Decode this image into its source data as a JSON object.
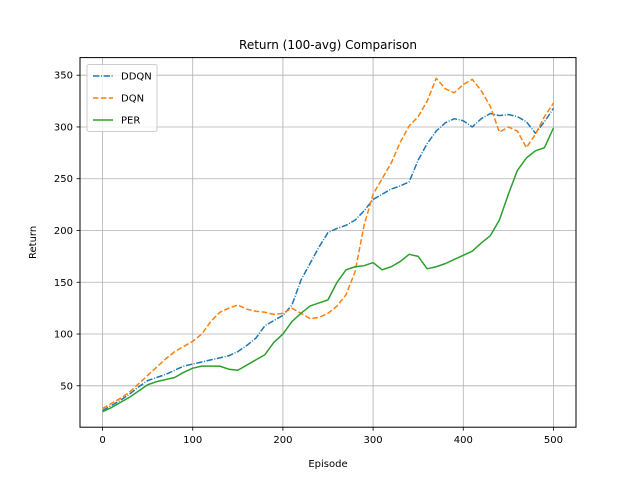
{
  "chart_data": {
    "type": "line",
    "title": "Return (100-avg) Comparison",
    "xlabel": "Episode",
    "ylabel": "Return",
    "xlim": [
      -25,
      525
    ],
    "ylim": [
      10,
      367
    ],
    "xticks": [
      0,
      100,
      200,
      300,
      400,
      500
    ],
    "yticks": [
      50,
      100,
      150,
      200,
      250,
      300,
      350
    ],
    "xtick_labels": [
      "0",
      "100",
      "200",
      "300",
      "400",
      "500"
    ],
    "ytick_labels": [
      "50",
      "100",
      "150",
      "200",
      "250",
      "300",
      "350"
    ],
    "grid": true,
    "legend_position": "upper-left",
    "series": [
      {
        "name": "DDQN",
        "color": "#1f77b4",
        "dash": "dash-dot",
        "x": [
          0,
          10,
          20,
          30,
          40,
          50,
          60,
          70,
          80,
          90,
          100,
          110,
          120,
          130,
          140,
          150,
          160,
          170,
          180,
          190,
          200,
          210,
          220,
          230,
          240,
          250,
          260,
          270,
          280,
          290,
          300,
          310,
          320,
          330,
          340,
          350,
          360,
          370,
          380,
          390,
          400,
          410,
          420,
          430,
          440,
          450,
          460,
          470,
          480,
          490,
          500
        ],
        "y": [
          26,
          31,
          36,
          42,
          49,
          55,
          58,
          61,
          65,
          69,
          71,
          73,
          75,
          77,
          79,
          83,
          89,
          96,
          108,
          113,
          118,
          128,
          152,
          168,
          184,
          198,
          202,
          205,
          210,
          219,
          230,
          235,
          240,
          243,
          247,
          268,
          284,
          296,
          304,
          308,
          306,
          300,
          308,
          313,
          311,
          312,
          310,
          305,
          294,
          305,
          318
        ]
      },
      {
        "name": "DQN",
        "color": "#ff7f0e",
        "dash": "dashed",
        "x": [
          0,
          10,
          20,
          30,
          40,
          50,
          60,
          70,
          80,
          90,
          100,
          110,
          120,
          130,
          140,
          150,
          160,
          170,
          180,
          190,
          200,
          210,
          220,
          230,
          240,
          250,
          260,
          270,
          280,
          290,
          300,
          310,
          320,
          330,
          340,
          350,
          360,
          370,
          380,
          390,
          400,
          410,
          420,
          430,
          440,
          450,
          460,
          470,
          480,
          490,
          500
        ],
        "y": [
          28,
          33,
          38,
          44,
          52,
          60,
          68,
          76,
          83,
          88,
          93,
          100,
          112,
          121,
          125,
          128,
          124,
          122,
          121,
          119,
          120,
          125,
          120,
          115,
          116,
          120,
          127,
          138,
          160,
          205,
          235,
          250,
          265,
          285,
          301,
          310,
          325,
          347,
          337,
          333,
          341,
          346,
          335,
          320,
          295,
          300,
          296,
          280,
          293,
          310,
          323
        ]
      },
      {
        "name": "PER",
        "color": "#2ca02c",
        "dash": "solid",
        "x": [
          0,
          10,
          20,
          30,
          40,
          50,
          60,
          70,
          80,
          90,
          100,
          110,
          120,
          130,
          140,
          150,
          160,
          170,
          180,
          190,
          200,
          210,
          220,
          230,
          240,
          250,
          260,
          270,
          280,
          290,
          300,
          310,
          320,
          330,
          340,
          350,
          360,
          370,
          380,
          390,
          400,
          410,
          420,
          430,
          440,
          450,
          460,
          470,
          480,
          490,
          500
        ],
        "y": [
          25,
          29,
          34,
          39,
          45,
          51,
          54,
          56,
          58,
          63,
          67,
          69,
          69,
          69,
          66,
          65,
          70,
          75,
          80,
          92,
          100,
          112,
          120,
          127,
          130,
          133,
          150,
          162,
          165,
          166,
          169,
          162,
          165,
          170,
          177,
          175,
          163,
          165,
          168,
          172,
          176,
          180,
          188,
          195,
          210,
          235,
          258,
          270,
          277,
          280,
          299
        ]
      }
    ]
  }
}
